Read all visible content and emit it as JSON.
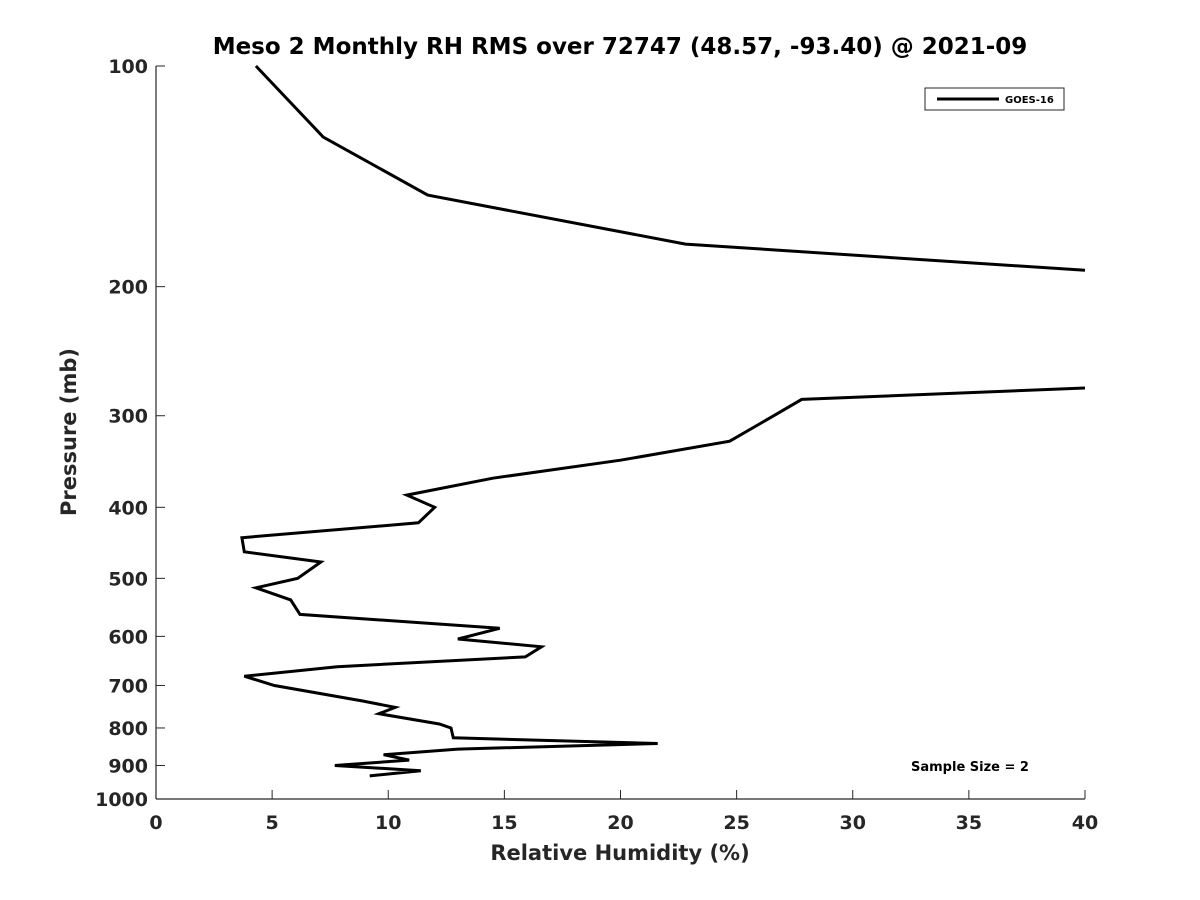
{
  "chart_data": {
    "type": "line",
    "title": "Meso 2 Monthly RH RMS over 72747 (48.57, -93.40) @ 2021-09",
    "xlabel": "Relative Humidity (%)",
    "ylabel": "Pressure (mb)",
    "xlim": [
      0,
      40
    ],
    "ylim": [
      100,
      1000
    ],
    "y_scale": "log",
    "y_reversed": true,
    "x_ticks": [
      0,
      5,
      10,
      15,
      20,
      25,
      30,
      35,
      40
    ],
    "y_ticks": [
      100,
      200,
      300,
      400,
      500,
      600,
      700,
      800,
      900,
      1000
    ],
    "grid": false,
    "legend": {
      "position": "top-right",
      "entries": [
        "GOES-16"
      ]
    },
    "annotation": "Sample Size = 2",
    "series": [
      {
        "name": "GOES-16",
        "color": "#000000",
        "segments": [
          [
            [
              4.3,
              100
            ],
            [
              7.2,
              125
            ],
            [
              11.7,
              150
            ],
            [
              22.8,
              175
            ],
            [
              40.0,
              190
            ]
          ],
          [
            [
              40.0,
              275
            ],
            [
              27.8,
              285
            ],
            [
              26.6,
              300
            ],
            [
              24.7,
              325
            ],
            [
              20.0,
              345
            ],
            [
              14.5,
              365
            ],
            [
              10.8,
              385
            ],
            [
              12.0,
              400
            ],
            [
              11.3,
              420
            ],
            [
              3.7,
              440
            ],
            [
              3.8,
              460
            ],
            [
              7.1,
              475
            ],
            [
              6.1,
              500
            ],
            [
              4.3,
              515
            ],
            [
              5.8,
              535
            ],
            [
              6.2,
              560
            ],
            [
              14.8,
              585
            ],
            [
              13.0,
              605
            ],
            [
              16.6,
              620
            ],
            [
              15.9,
              640
            ],
            [
              7.8,
              660
            ],
            [
              3.8,
              680
            ],
            [
              5.1,
              700
            ],
            [
              8.9,
              735
            ],
            [
              10.3,
              750
            ],
            [
              9.6,
              765
            ],
            [
              12.2,
              790
            ],
            [
              12.7,
              800
            ],
            [
              12.8,
              825
            ],
            [
              21.6,
              840
            ],
            [
              13.0,
              855
            ],
            [
              9.8,
              870
            ],
            [
              10.9,
              885
            ],
            [
              7.7,
              900
            ],
            [
              11.4,
              915
            ],
            [
              9.2,
              930
            ]
          ]
        ]
      }
    ]
  }
}
